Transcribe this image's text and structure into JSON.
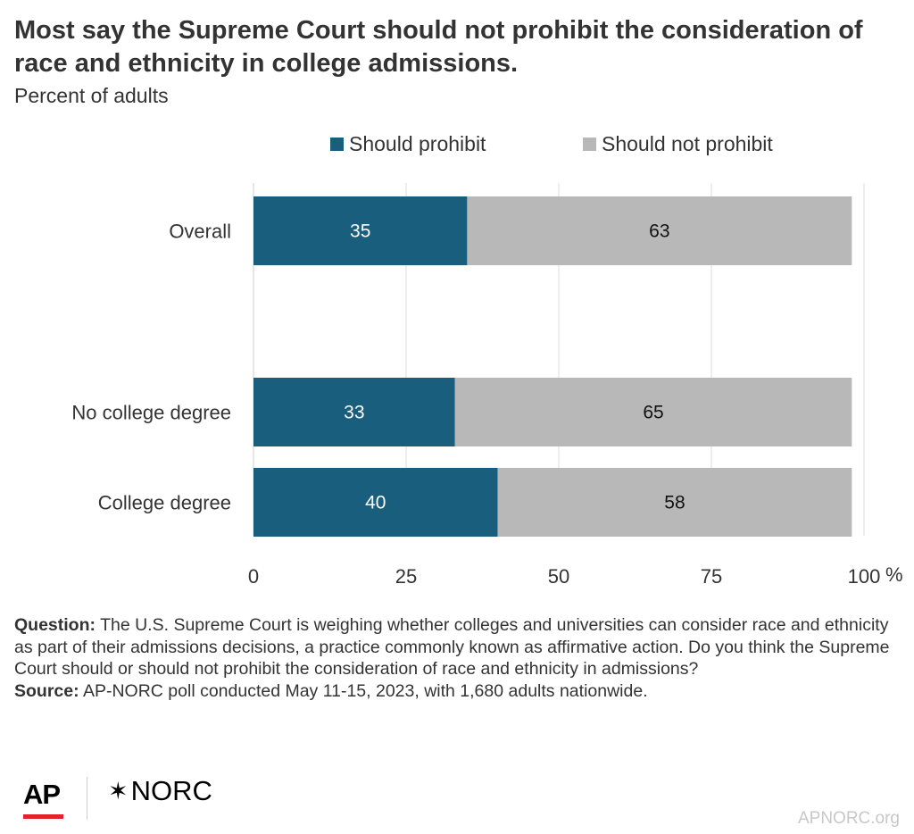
{
  "title": "Most say the Supreme Court should not prohibit the consideration of race and ethnicity in college admissions.",
  "subtitle": "Percent of adults",
  "legend": [
    {
      "label": "Should prohibit",
      "color": "#1a5e7e"
    },
    {
      "label": "Should not prohibit",
      "color": "#b8b8b8"
    }
  ],
  "chart_data": {
    "type": "bar",
    "orientation": "horizontal",
    "stacked": true,
    "categories": [
      "Overall",
      "No college degree",
      "College degree"
    ],
    "series": [
      {
        "name": "Should prohibit",
        "values": [
          35,
          33,
          40
        ],
        "color": "#1a5e7e"
      },
      {
        "name": "Should not prohibit",
        "values": [
          63,
          65,
          58
        ],
        "color": "#b8b8b8"
      }
    ],
    "xlim": [
      0,
      100
    ],
    "x_ticks": [
      "0",
      "25",
      "50",
      "75",
      "100"
    ],
    "x_unit": "%",
    "grid": true,
    "legend_position": "top"
  },
  "notes": {
    "question_label": "Question:",
    "question_text": "The U.S. Supreme Court is weighing whether colleges and universities can consider race and ethnicity as part of their admissions decisions, a practice commonly known as affirmative action. Do you think the Supreme Court should or should not prohibit the consideration of race and ethnicity in admissions?",
    "source_label": "Source:",
    "source_text": "AP-NORC poll conducted May 11-15, 2023, with 1,680 adults nationwide."
  },
  "logos": {
    "ap": "AP",
    "norc_star": "✶",
    "norc": "NORC"
  },
  "site": "APNORC.org"
}
